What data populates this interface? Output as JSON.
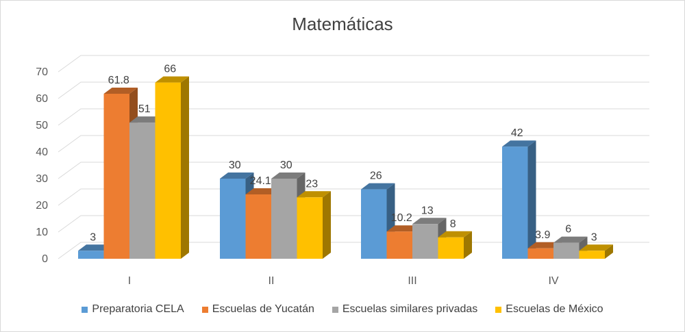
{
  "chart_data": {
    "type": "bar",
    "title": "Matemáticas",
    "categories": [
      "I",
      "II",
      "III",
      "IV"
    ],
    "yticks": [
      "0",
      "10",
      "20",
      "30",
      "40",
      "50",
      "60",
      "70"
    ],
    "ylim": [
      0,
      70
    ],
    "grid": true,
    "legend_position": "bottom",
    "series": [
      {
        "name": "Preparatoria CELA",
        "color": "#5b9bd5",
        "values": [
          3,
          30,
          26,
          42
        ],
        "labels": [
          "3",
          "30",
          "26",
          "42"
        ]
      },
      {
        "name": "Escuelas de Yucatán",
        "color": "#ed7d31",
        "values": [
          61.8,
          24.1,
          10.2,
          3.9
        ],
        "labels": [
          "61.8",
          "24.1",
          "10.2",
          "3.9"
        ]
      },
      {
        "name": "Escuelas similares privadas",
        "color": "#a5a5a5",
        "values": [
          51,
          30,
          13,
          6
        ],
        "labels": [
          "51",
          "30",
          "13",
          "6"
        ]
      },
      {
        "name": "Escuelas de México",
        "color": "#ffc000",
        "values": [
          66,
          23,
          8,
          3
        ],
        "labels": [
          "66",
          "23",
          "8",
          "3"
        ]
      }
    ]
  }
}
